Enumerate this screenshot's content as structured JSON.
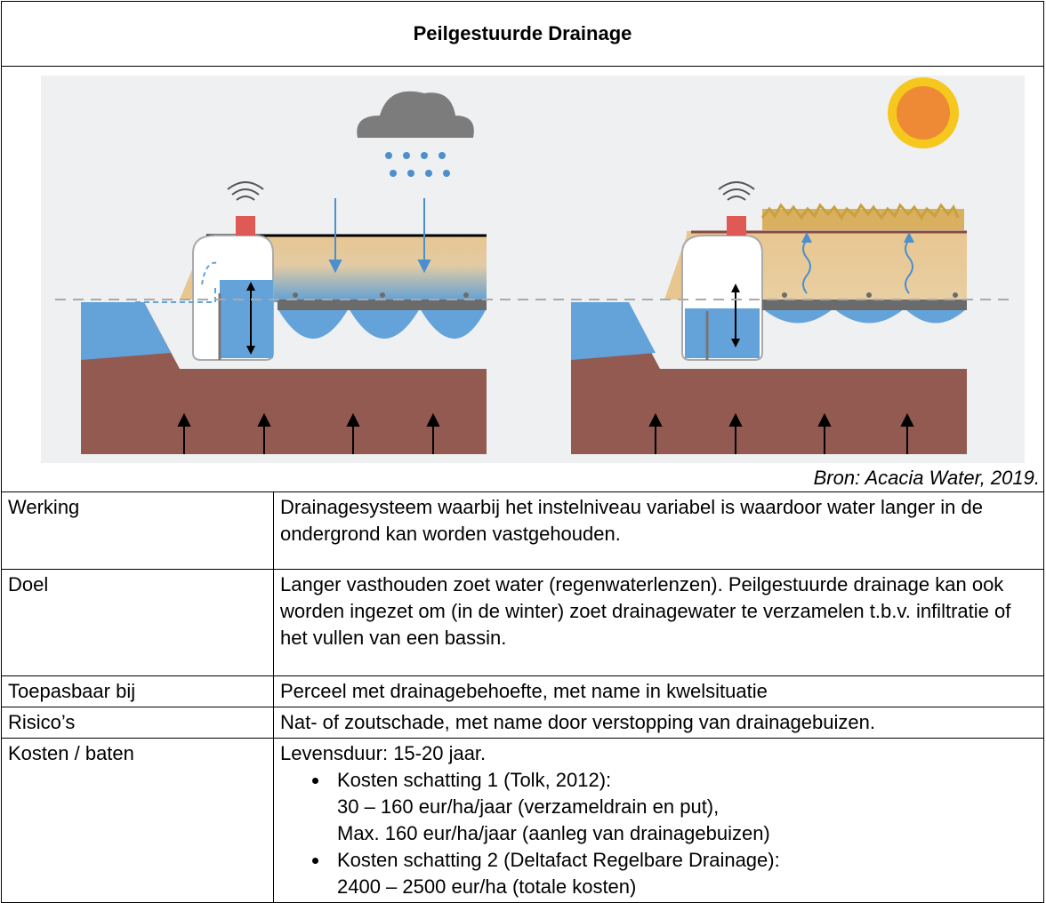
{
  "header": {
    "title": "Peilgestuurde Drainage"
  },
  "source": "Bron: Acacia Water, 2019.",
  "rows": [
    {
      "label": "Werking",
      "text": "Drainagesysteem waarbij het instelniveau variabel is waardoor water langer in de ondergrond kan worden vastgehouden."
    },
    {
      "label": "Doel",
      "text": "Langer vasthouden zoet water (regenwaterlenzen). Peilgestuurde drainage kan ook worden ingezet om (in de winter) zoet drainagewater te verzamelen t.b.v. infiltratie of het vullen van een bassin."
    },
    {
      "label": "Toepasbaar bij",
      "text": "Perceel met drainagebehoefte, met name in kwelsituatie"
    },
    {
      "label": "Risico’s",
      "text": "Nat- of zoutschade, met name door verstopping van drainagebuizen."
    },
    {
      "label": "Kosten / baten",
      "text": "Levensduur: 15-20 jaar.",
      "bullets": [
        {
          "title": "Kosten schatting 1 (Tolk, 2012):",
          "lines": [
            "30 – 160 eur/ha/jaar (verzameldrain en put),",
            "Max. 160 eur/ha/jaar (aanleg van drainagebuizen)"
          ]
        },
        {
          "title": "Kosten schatting 2 (Deltafact Regelbare Drainage):",
          "lines": [
            "2400 – 2500 eur/ha (totale kosten)"
          ]
        }
      ]
    }
  ]
}
